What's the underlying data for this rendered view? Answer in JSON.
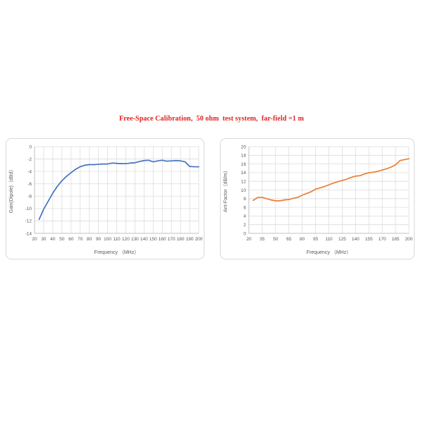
{
  "page": {
    "title": "Free-Space Calibration,  50 ohm  test system,  far-field =1 m",
    "title_color": "#e02020",
    "background": "#ffffff",
    "axis_text_color": "#595959",
    "grid_color": "#dcdcdc",
    "axis_line_color": "#c0c0c0"
  },
  "chart_data": [
    {
      "type": "line",
      "name": "gain-dipole-chart",
      "title": "",
      "xlabel": "Frequency （MHz）",
      "ylabel": "Gain(Dipole)（dBd）",
      "line_color": "#4472C4",
      "grid": true,
      "legend": "none",
      "xlim": [
        20,
        200
      ],
      "ylim": [
        -14,
        0
      ],
      "xticks": [
        20,
        30,
        40,
        50,
        60,
        70,
        80,
        90,
        100,
        110,
        120,
        130,
        140,
        150,
        160,
        170,
        180,
        190,
        200
      ],
      "yticks": [
        0,
        -2,
        -4,
        -6,
        -8,
        -10,
        -12,
        -14
      ],
      "x": [
        25,
        30,
        35,
        40,
        45,
        50,
        55,
        60,
        65,
        70,
        75,
        80,
        85,
        90,
        95,
        100,
        105,
        110,
        115,
        120,
        125,
        130,
        135,
        140,
        145,
        150,
        155,
        160,
        165,
        170,
        175,
        180,
        185,
        190,
        195,
        200
      ],
      "y": [
        -11.75,
        -10.1,
        -8.8,
        -7.5,
        -6.4,
        -5.5,
        -4.8,
        -4.2,
        -3.65,
        -3.25,
        -3.0,
        -2.9,
        -2.9,
        -2.85,
        -2.8,
        -2.8,
        -2.65,
        -2.7,
        -2.75,
        -2.75,
        -2.65,
        -2.6,
        -2.4,
        -2.25,
        -2.2,
        -2.45,
        -2.3,
        -2.2,
        -2.35,
        -2.3,
        -2.25,
        -2.3,
        -2.45,
        -3.2,
        -3.25,
        -3.25
      ]
    },
    {
      "type": "line",
      "name": "antenna-factor-chart",
      "title": "",
      "xlabel": "Frequency （MHz）",
      "ylabel": "Ant-Factor（dB/m）",
      "line_color": "#ED7D31",
      "grid": true,
      "legend": "none",
      "xlim": [
        20,
        200
      ],
      "ylim": [
        0,
        20
      ],
      "xticks": [
        20,
        35,
        50,
        65,
        80,
        95,
        110,
        125,
        140,
        155,
        170,
        185,
        200
      ],
      "yticks": [
        20,
        18,
        16,
        14,
        12,
        10,
        8,
        6,
        4,
        2,
        0
      ],
      "x": [
        25,
        30,
        35,
        40,
        45,
        50,
        55,
        60,
        65,
        70,
        75,
        80,
        85,
        90,
        95,
        100,
        105,
        110,
        115,
        120,
        125,
        130,
        135,
        140,
        145,
        150,
        155,
        160,
        165,
        170,
        175,
        180,
        185,
        190,
        195,
        200
      ],
      "y": [
        7.6,
        8.3,
        8.3,
        8.0,
        7.7,
        7.5,
        7.5,
        7.7,
        7.8,
        8.1,
        8.3,
        8.8,
        9.2,
        9.6,
        10.2,
        10.5,
        10.8,
        11.2,
        11.6,
        11.9,
        12.2,
        12.5,
        12.9,
        13.2,
        13.3,
        13.7,
        14.0,
        14.1,
        14.3,
        14.6,
        14.9,
        15.3,
        15.8,
        16.8,
        17.0,
        17.2
      ]
    }
  ]
}
